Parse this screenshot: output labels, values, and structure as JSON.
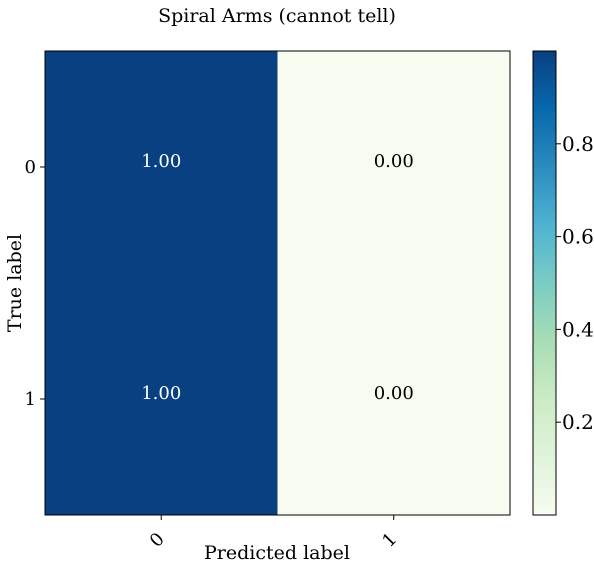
{
  "chart_data": {
    "type": "heatmap",
    "title": "Spiral Arms (cannot tell)",
    "xlabel": "Predicted label",
    "ylabel": "True label",
    "x_tick_labels": [
      "0",
      "1"
    ],
    "y_tick_labels": [
      "0",
      "1"
    ],
    "values": [
      [
        1.0,
        0.0
      ],
      [
        1.0,
        0.0
      ]
    ],
    "cell_labels": [
      [
        "1.00",
        "0.00"
      ],
      [
        "1.00",
        "0.00"
      ]
    ],
    "colormap": "GnBu",
    "colorbar": {
      "range": [
        0.0,
        1.0
      ],
      "ticks": [
        0.2,
        0.4,
        0.6,
        0.8
      ],
      "tick_labels": [
        "0.2",
        "0.4",
        "0.6",
        "0.8"
      ]
    },
    "colors": {
      "high": "#084081",
      "low": "#f7fcf0"
    }
  }
}
